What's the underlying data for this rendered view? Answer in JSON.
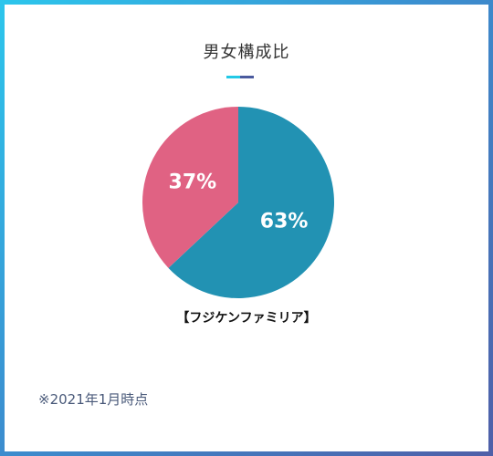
{
  "chart_data": {
    "type": "pie",
    "title": "男女構成比",
    "subtitle": "【フジケンファミリア】",
    "slices": [
      {
        "value": 63,
        "label": "63%",
        "color": "#2292b3"
      },
      {
        "value": 37,
        "label": "37%",
        "color": "#e06283"
      }
    ]
  },
  "footnote": "※2021年1月時点"
}
